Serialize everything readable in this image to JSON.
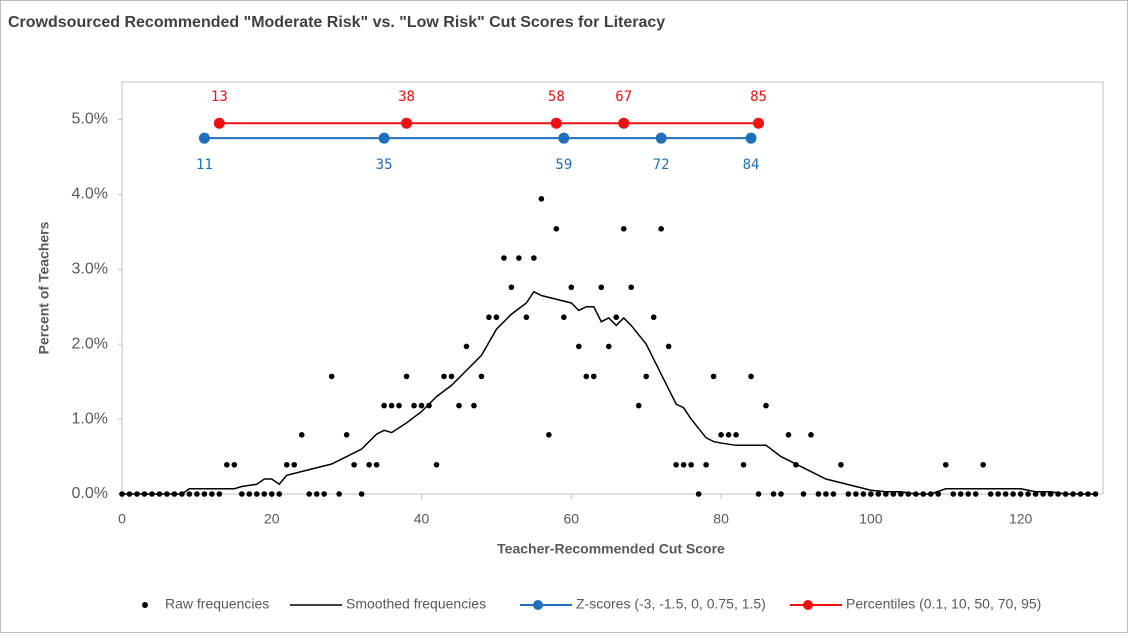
{
  "chart_data": {
    "type": "scatter",
    "title": "Crowdsourced Recommended \"Moderate Risk\" vs. \"Low Risk\" Cut Scores for Literacy",
    "x_label": "Teacher-Recommended Cut Score",
    "y_label": "Percent of Teachers",
    "xlim": [
      0,
      131
    ],
    "xticks": [
      0,
      20,
      40,
      60,
      80,
      100,
      120
    ],
    "ylim": [
      0,
      5.5
    ],
    "yticks": [
      {
        "value": 0,
        "label": "0.0%"
      },
      {
        "value": 1,
        "label": "1.0%"
      },
      {
        "value": 2,
        "label": "2.0%"
      },
      {
        "value": 3,
        "label": "3.0%"
      },
      {
        "value": 4,
        "label": "4.0%"
      },
      {
        "value": 5,
        "label": "5.0%"
      }
    ],
    "legend": "bottom",
    "series": [
      {
        "name": "Raw frequencies",
        "type": "scatter",
        "color": "#000000",
        "x": [
          0,
          1,
          2,
          3,
          4,
          5,
          6,
          7,
          8,
          9,
          10,
          11,
          12,
          13,
          14,
          15,
          16,
          17,
          18,
          19,
          20,
          21,
          22,
          23,
          24,
          25,
          26,
          27,
          28,
          29,
          30,
          31,
          32,
          33,
          34,
          35,
          36,
          37,
          38,
          39,
          40,
          41,
          42,
          43,
          44,
          45,
          46,
          47,
          48,
          49,
          50,
          51,
          52,
          53,
          54,
          55,
          56,
          57,
          58,
          59,
          60,
          61,
          62,
          63,
          64,
          65,
          66,
          67,
          68,
          69,
          70,
          71,
          72,
          73,
          74,
          75,
          76,
          77,
          78,
          79,
          80,
          81,
          82,
          83,
          84,
          85,
          86,
          87,
          88,
          89,
          90,
          91,
          92,
          93,
          94,
          95,
          96,
          97,
          98,
          99,
          100,
          101,
          102,
          103,
          104,
          105,
          106,
          107,
          108,
          109,
          110,
          111,
          112,
          113,
          114,
          115,
          116,
          117,
          118,
          119,
          120,
          121,
          122,
          123,
          124,
          125,
          126,
          127,
          128,
          129,
          130
        ],
        "values": [
          0,
          0,
          0,
          0,
          0,
          0,
          0,
          0,
          0,
          0,
          0,
          0,
          0,
          0,
          0.39,
          0.39,
          0,
          0,
          0,
          0,
          0,
          0,
          0.39,
          0.39,
          0.79,
          0,
          0,
          0,
          1.57,
          0,
          0.79,
          0.39,
          0,
          0.39,
          0.39,
          1.18,
          1.18,
          1.18,
          1.57,
          1.18,
          1.18,
          1.18,
          0.39,
          1.57,
          1.57,
          1.18,
          1.97,
          1.18,
          1.57,
          2.36,
          2.36,
          3.15,
          2.76,
          3.15,
          2.36,
          3.15,
          3.94,
          0.79,
          3.54,
          2.36,
          2.76,
          1.97,
          1.57,
          1.57,
          2.76,
          1.97,
          2.36,
          3.54,
          2.76,
          1.18,
          1.57,
          2.36,
          3.54,
          1.97,
          0.39,
          0.39,
          0.39,
          0,
          0.39,
          1.57,
          0.79,
          0.79,
          0.79,
          0.39,
          1.57,
          0,
          1.18,
          0,
          0,
          0.79,
          0.39,
          0,
          0.79,
          0,
          0,
          0,
          0.39,
          0,
          0,
          0,
          0,
          0,
          0,
          0,
          0,
          0,
          0,
          0,
          0,
          0,
          0.39,
          0,
          0,
          0,
          0,
          0.39,
          0,
          0,
          0,
          0,
          0,
          0,
          0,
          0,
          0,
          0,
          0,
          0,
          0,
          0,
          0
        ]
      },
      {
        "name": "Smoothed frequencies",
        "type": "line",
        "color": "#000000",
        "x": [
          0,
          8,
          9,
          15,
          16,
          18,
          19,
          20,
          21,
          22,
          24,
          26,
          28,
          30,
          32,
          34,
          35,
          36,
          38,
          40,
          42,
          44,
          46,
          48,
          50,
          52,
          54,
          55,
          56,
          58,
          60,
          61,
          62,
          63,
          64,
          65,
          66,
          67,
          68,
          70,
          72,
          74,
          75,
          76,
          78,
          79,
          80,
          82,
          84,
          86,
          88,
          90,
          92,
          94,
          96,
          98,
          100,
          102,
          104,
          106,
          108,
          110,
          118,
          120,
          122,
          124,
          126,
          130
        ],
        "values": [
          0,
          0,
          0.07,
          0.07,
          0.1,
          0.13,
          0.2,
          0.2,
          0.13,
          0.25,
          0.3,
          0.35,
          0.4,
          0.5,
          0.6,
          0.8,
          0.85,
          0.82,
          0.95,
          1.1,
          1.3,
          1.45,
          1.65,
          1.85,
          2.2,
          2.4,
          2.55,
          2.7,
          2.65,
          2.6,
          2.55,
          2.45,
          2.5,
          2.5,
          2.3,
          2.35,
          2.25,
          2.35,
          2.25,
          2.0,
          1.6,
          1.2,
          1.15,
          1.0,
          0.75,
          0.7,
          0.68,
          0.65,
          0.65,
          0.65,
          0.5,
          0.4,
          0.3,
          0.2,
          0.15,
          0.1,
          0.05,
          0.03,
          0.03,
          0,
          0,
          0.07,
          0.07,
          0.07,
          0.03,
          0.03,
          0,
          0
        ]
      },
      {
        "name": "Z-scores (-3, -1.5, 0, 0.75, 1.5)",
        "type": "line",
        "markers": true,
        "label_position": "below",
        "color": "#1f6fba",
        "x": [
          11,
          35,
          59,
          72,
          84
        ],
        "values": [
          4.75,
          4.75,
          4.75,
          4.75,
          4.75
        ]
      },
      {
        "name": "Percentiles (0.1, 10, 50, 70, 95)",
        "type": "line",
        "markers": true,
        "label_position": "above",
        "color": "#ee1111",
        "x": [
          13,
          38,
          58,
          67,
          85
        ],
        "values": [
          4.95,
          4.95,
          4.95,
          4.95,
          4.95
        ]
      }
    ]
  }
}
